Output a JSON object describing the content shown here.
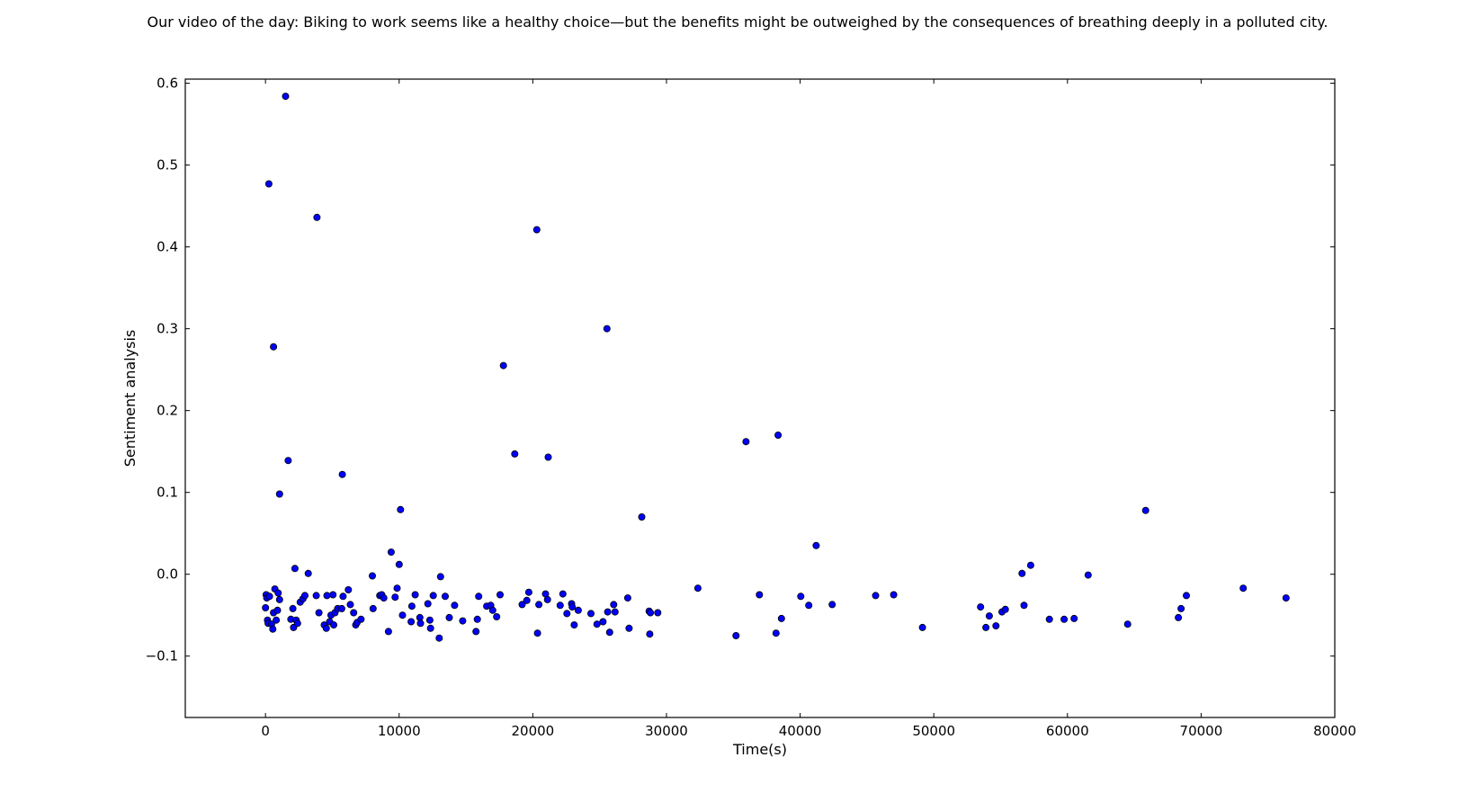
{
  "chart_data": {
    "type": "scatter",
    "title": "Our video of the day: Biking to work seems like a healthy choice—but the  benefits might be outweighed by the consequences of breathing deeply in a polluted city.",
    "xlabel": "Time(s)",
    "ylabel": "Sentiment analysis",
    "xlim": [
      -6000,
      80000
    ],
    "ylim": [
      -0.175,
      0.605
    ],
    "xticks": [
      0,
      10000,
      20000,
      30000,
      40000,
      50000,
      60000,
      70000,
      80000
    ],
    "xtick_labels": [
      "0",
      "10000",
      "20000",
      "30000",
      "40000",
      "50000",
      "60000",
      "70000",
      "80000"
    ],
    "yticks": [
      -0.1,
      0.0,
      0.1,
      0.2,
      0.3,
      0.4,
      0.5,
      0.6
    ],
    "ytick_labels": [
      "−0.1",
      "0.0",
      "0.1",
      "0.2",
      "0.3",
      "0.4",
      "0.5",
      "0.6"
    ],
    "grid": false,
    "marker_color": "#0000ff",
    "marker_edge_color": "#000000",
    "series": [
      {
        "points": [
          [
            1500,
            0.584
          ],
          [
            250,
            0.477
          ],
          [
            600,
            0.278
          ],
          [
            1700,
            0.139
          ],
          [
            1050,
            0.098
          ],
          [
            3850,
            0.436
          ],
          [
            5750,
            0.122
          ],
          [
            2200,
            0.007
          ],
          [
            3200,
            0.001
          ],
          [
            0,
            -0.041
          ],
          [
            50,
            -0.025
          ],
          [
            100,
            -0.029
          ],
          [
            150,
            -0.056
          ],
          [
            200,
            -0.06
          ],
          [
            300,
            -0.027
          ],
          [
            450,
            -0.061
          ],
          [
            550,
            -0.067
          ],
          [
            600,
            -0.047
          ],
          [
            700,
            -0.018
          ],
          [
            800,
            -0.056
          ],
          [
            900,
            -0.044
          ],
          [
            950,
            -0.023
          ],
          [
            1050,
            -0.031
          ],
          [
            1900,
            -0.055
          ],
          [
            2050,
            -0.042
          ],
          [
            2100,
            -0.065
          ],
          [
            2300,
            -0.056
          ],
          [
            2400,
            -0.06
          ],
          [
            2600,
            -0.034
          ],
          [
            2800,
            -0.03
          ],
          [
            2950,
            -0.026
          ],
          [
            3800,
            -0.026
          ],
          [
            4000,
            -0.047
          ],
          [
            4400,
            -0.062
          ],
          [
            4550,
            -0.066
          ],
          [
            4600,
            -0.026
          ],
          [
            4800,
            -0.058
          ],
          [
            4900,
            -0.05
          ],
          [
            5050,
            -0.025
          ],
          [
            5100,
            -0.062
          ],
          [
            5200,
            -0.047
          ],
          [
            5400,
            -0.042
          ],
          [
            5700,
            -0.042
          ],
          [
            5800,
            -0.027
          ],
          [
            6200,
            -0.019
          ],
          [
            6350,
            -0.037
          ],
          [
            6600,
            -0.047
          ],
          [
            6750,
            -0.062
          ],
          [
            6850,
            -0.059
          ],
          [
            7150,
            -0.055
          ],
          [
            8000,
            -0.002
          ],
          [
            8050,
            -0.042
          ],
          [
            8550,
            -0.026
          ],
          [
            8700,
            -0.025
          ],
          [
            8850,
            -0.029
          ],
          [
            9200,
            -0.07
          ],
          [
            9400,
            0.027
          ],
          [
            9700,
            -0.028
          ],
          [
            9850,
            -0.017
          ],
          [
            10000,
            0.012
          ],
          [
            10100,
            0.079
          ],
          [
            10250,
            -0.05
          ],
          [
            10900,
            -0.058
          ],
          [
            10950,
            -0.039
          ],
          [
            11200,
            -0.025
          ],
          [
            11550,
            -0.053
          ],
          [
            11600,
            -0.06
          ],
          [
            12150,
            -0.036
          ],
          [
            12300,
            -0.056
          ],
          [
            12350,
            -0.066
          ],
          [
            12550,
            -0.026
          ],
          [
            13000,
            -0.078
          ],
          [
            13100,
            -0.003
          ],
          [
            13450,
            -0.027
          ],
          [
            13750,
            -0.053
          ],
          [
            14150,
            -0.038
          ],
          [
            14750,
            -0.057
          ],
          [
            15750,
            -0.07
          ],
          [
            15850,
            -0.055
          ],
          [
            15950,
            -0.027
          ],
          [
            16550,
            -0.039
          ],
          [
            16850,
            -0.038
          ],
          [
            17000,
            -0.044
          ],
          [
            17300,
            -0.052
          ],
          [
            17550,
            -0.025
          ],
          [
            17800,
            0.255
          ],
          [
            18650,
            0.147
          ],
          [
            19200,
            -0.037
          ],
          [
            19550,
            -0.032
          ],
          [
            19700,
            -0.022
          ],
          [
            20300,
            0.421
          ],
          [
            20350,
            -0.072
          ],
          [
            20450,
            -0.037
          ],
          [
            20950,
            -0.024
          ],
          [
            21100,
            -0.031
          ],
          [
            21150,
            0.143
          ],
          [
            22050,
            -0.038
          ],
          [
            22250,
            -0.024
          ],
          [
            22550,
            -0.048
          ],
          [
            22900,
            -0.036
          ],
          [
            22950,
            -0.04
          ],
          [
            23100,
            -0.062
          ],
          [
            23400,
            -0.044
          ],
          [
            24350,
            -0.048
          ],
          [
            24800,
            -0.061
          ],
          [
            25250,
            -0.058
          ],
          [
            25550,
            0.3
          ],
          [
            25600,
            -0.046
          ],
          [
            25750,
            -0.071
          ],
          [
            26050,
            -0.037
          ],
          [
            26150,
            -0.046
          ],
          [
            27100,
            -0.029
          ],
          [
            27200,
            -0.066
          ],
          [
            28150,
            0.07
          ],
          [
            28700,
            -0.045
          ],
          [
            28750,
            -0.073
          ],
          [
            28800,
            -0.047
          ],
          [
            29350,
            -0.047
          ],
          [
            32350,
            -0.017
          ],
          [
            35200,
            -0.075
          ],
          [
            35950,
            0.162
          ],
          [
            36950,
            -0.025
          ],
          [
            38200,
            -0.072
          ],
          [
            38350,
            0.17
          ],
          [
            38600,
            -0.054
          ],
          [
            40050,
            -0.027
          ],
          [
            40650,
            -0.038
          ],
          [
            41200,
            0.035
          ],
          [
            42400,
            -0.037
          ],
          [
            45650,
            -0.026
          ],
          [
            47000,
            -0.025
          ],
          [
            49150,
            -0.065
          ],
          [
            53500,
            -0.04
          ],
          [
            53900,
            -0.065
          ],
          [
            54150,
            -0.051
          ],
          [
            54650,
            -0.063
          ],
          [
            55100,
            -0.046
          ],
          [
            55350,
            -0.043
          ],
          [
            56600,
            0.001
          ],
          [
            56750,
            -0.038
          ],
          [
            57250,
            0.011
          ],
          [
            58650,
            -0.055
          ],
          [
            59750,
            -0.055
          ],
          [
            60500,
            -0.054
          ],
          [
            61550,
            -0.001
          ],
          [
            64500,
            -0.061
          ],
          [
            65850,
            0.078
          ],
          [
            68300,
            -0.053
          ],
          [
            68500,
            -0.042
          ],
          [
            68900,
            -0.026
          ],
          [
            73150,
            -0.017
          ],
          [
            76350,
            -0.029
          ]
        ]
      }
    ]
  }
}
